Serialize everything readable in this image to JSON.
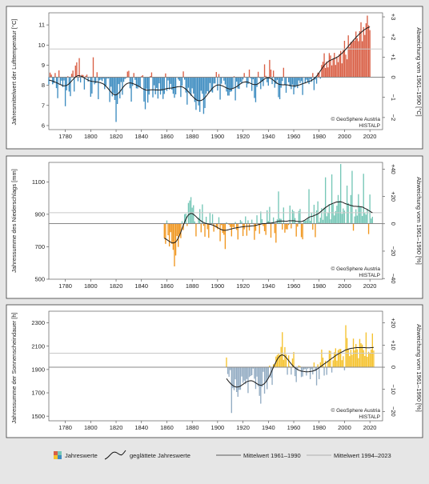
{
  "chart_data": [
    {
      "type": "bar",
      "panel": "temperature",
      "ylabel_left": "Jahresmittelwert der Lufttemperatur [°C]",
      "ylabel_right": "Abweichung vom 1961–1990 [°C]",
      "ylim_left": [
        5.8,
        11.6
      ],
      "yticks_left": [
        6,
        7,
        8,
        9,
        10,
        11
      ],
      "ylim_right": [
        -2.6,
        3.2
      ],
      "yticks_right": [
        "−2",
        "−1",
        "0",
        "+1",
        "+2",
        "+3"
      ],
      "yticks_right_values": [
        -2,
        -1,
        0,
        1,
        2,
        3
      ],
      "xlim": [
        1767,
        2030
      ],
      "xticks": [
        1780,
        1800,
        1820,
        1840,
        1860,
        1880,
        1900,
        1920,
        1940,
        1960,
        1980,
        2000,
        2020
      ],
      "baseline": 8.4,
      "mean_1994_2023": 9.8,
      "positive_color": "#d95f45",
      "negative_color": "#3d8cc0",
      "start_year": 1767,
      "annual_values": [
        8.04,
        8.63,
        8.53,
        8.05,
        8.11,
        8.61,
        7.86,
        7.36,
        8.74,
        8.06,
        8.23,
        7.91,
        8.24,
        6.96,
        7.75,
        8.45,
        7.69,
        7.46,
        8.57,
        8.73,
        7.69,
        8.98,
        9.14,
        8.2,
        9.35,
        8.14,
        8.52,
        8.51,
        7.79,
        8.47,
        8.53,
        8.18,
        8.38,
        7.43,
        7.59,
        9.39,
        8.05,
        8.11,
        8.65,
        7.31,
        8.25,
        8.28,
        8.21,
        8.33,
        7.81,
        7.98,
        8.33,
        8.34,
        7.17,
        7.93,
        7.45,
        7.61,
        7.27,
        6.18,
        7.07,
        8.06,
        7.35,
        8.16,
        7.53,
        8.17,
        8.31,
        8.36,
        8.68,
        8.72,
        7.85,
        7.19,
        7.97,
        8.61,
        8.27,
        7.85,
        7.84,
        7.96,
        7.89,
        8.45,
        8.5,
        7.19,
        6.81,
        7.83,
        7.14,
        7.54,
        8.46,
        8.64,
        7.4,
        8.0,
        7.55,
        7.87,
        7.34,
        8.1,
        7.54,
        7.73,
        7.32,
        7.57,
        8.59,
        7.72,
        8.24,
        7.79,
        8.07,
        7.78,
        7.58,
        7.38,
        7.55,
        8.42,
        8.29,
        8.22,
        7.42,
        7.98,
        8.69,
        8.28,
        7.64,
        7.04,
        7.88,
        7.63,
        7.48,
        7.85,
        7.59,
        7.17,
        6.78,
        7.22,
        7.0,
        6.68,
        7.73,
        7.58,
        6.58,
        6.87,
        7.58,
        7.71,
        7.6,
        8.11,
        7.69,
        7.64,
        8.09,
        8.09,
        8.66,
        7.74,
        8.56,
        7.29,
        8.08,
        8.37,
        8.23,
        8.04,
        7.69,
        7.49,
        7.49,
        7.68,
        7.7,
        7.83,
        8.45,
        7.25,
        8.18,
        7.84,
        7.82,
        8.16,
        8.09,
        8.29,
        8.61,
        8.38,
        7.89,
        8.06,
        8.78,
        8.34,
        7.72,
        8.3,
        7.37,
        7.16,
        7.92,
        8.67,
        8.36,
        7.81,
        8.18,
        7.96,
        9.04,
        8.47,
        8.15,
        7.98,
        9.26,
        8.78,
        8.06,
        8.73,
        7.88,
        8.07,
        8.27,
        7.41,
        7.31,
        7.88,
        8.21,
        8.87,
        8.04,
        7.63,
        8.37,
        8.15,
        7.94,
        7.81,
        8.04,
        7.55,
        7.89,
        8.0,
        7.86,
        8.24,
        8.11,
        8.21,
        7.52,
        8.38,
        8.1,
        8.28,
        8.15,
        8.06,
        8.31,
        8.17,
        8.61,
        7.76,
        8.29,
        8.08,
        8.63,
        8.62,
        8.33,
        9.01,
        9.17,
        9.59,
        8.86,
        9.18,
        8.89,
        9.6,
        9.48,
        8.99,
        9.32,
        9.61,
        9.01,
        9.42,
        9.15,
        9.55,
        9.71,
        9.09,
        9.75,
        10.21,
        9.52,
        9.29,
        10.48,
        9.91,
        10.15,
        10.14,
        10.27,
        10.22,
        10.67,
        10.34,
        10.19,
        10.69,
        11.13,
        10.19,
        10.89,
        10.5,
        11.08,
        11.46,
        10.98,
        10.74
      ]
    },
    {
      "type": "bar",
      "panel": "precipitation",
      "ylabel_left": "Jahressumme des Niederschlags [mm]",
      "ylabel_right": "Abweichung vom 1961–1990 [%]",
      "ylim_left": [
        500,
        1220
      ],
      "yticks_left": [
        500,
        700,
        900,
        1100
      ],
      "ylim_right": [
        -40.5,
        44.9
      ],
      "yticks_right": [
        "−40",
        "−20",
        "0",
        "+20",
        "+40"
      ],
      "yticks_right_values": [
        -40,
        -20,
        0,
        20,
        40
      ],
      "xlim": [
        1767,
        2030
      ],
      "xticks": [
        1780,
        1800,
        1820,
        1840,
        1860,
        1880,
        1900,
        1920,
        1940,
        1960,
        1980,
        2000,
        2020
      ],
      "baseline": 843,
      "mean_1994_2023": 910,
      "positive_color": "#76c7b7",
      "negative_color": "#f0961e",
      "start_year": 1858,
      "annual_values": [
        753,
        718,
        862,
        771,
        702,
        790,
        718,
        681,
        579,
        646,
        766,
        699,
        776,
        753,
        857,
        803,
        901,
        904,
        828,
        970,
        985,
        1006,
        941,
        956,
        856,
        764,
        845,
        879,
        932,
        789,
        961,
        829,
        762,
        885,
        808,
        755,
        909,
        847,
        901,
        793,
        845,
        818,
        808,
        882,
        734,
        834,
        785,
        774,
        686,
        851,
        841,
        835,
        822,
        764,
        822,
        816,
        853,
        804,
        745,
        846,
        865,
        856,
        766,
        807,
        887,
        768,
        863,
        800,
        842,
        867,
        846,
        743,
        798,
        894,
        837,
        780,
        917,
        870,
        828,
        796,
        773,
        925,
        859,
        946,
        756,
        840,
        881,
        784,
        725,
        869,
        1041,
        874,
        872,
        806,
        942,
        787,
        808,
        807,
        834,
        954,
        813,
        929,
        919,
        877,
        763,
        824,
        921,
        933,
        759,
        746,
        864,
        860,
        863,
        872,
        1055,
        860,
        911,
        805,
        959,
        759,
        924,
        980,
        852,
        879,
        938,
        866,
        941,
        1128,
        888,
        909,
        963,
        869,
        1146,
        963,
        893,
        920,
        953,
        1019,
        983,
        1210,
        903,
        936,
        923,
        847,
        1077,
        969,
        847,
        1019,
        1168,
        799,
        887,
        931,
        892,
        1024,
        950,
        946,
        890,
        1150,
        908,
        898,
        933,
        778,
        1022,
        874,
        885
      ]
    },
    {
      "type": "bar",
      "panel": "sunshine",
      "ylabel_left": "Jahressumme der Sonnenscheindauer [h]",
      "ylabel_right": "Abweichung vom 1961–1990 [%]",
      "ylim_left": [
        1460,
        2400
      ],
      "yticks_left": [
        1500,
        1700,
        1900,
        2100,
        2300
      ],
      "ylim_right": [
        -24.2,
        25.3
      ],
      "yticks_right": [
        "−20",
        "−10",
        "0",
        "+10",
        "+20"
      ],
      "yticks_right_values": [
        -20,
        -10,
        0,
        10,
        20
      ],
      "xlim": [
        1767,
        2030
      ],
      "xticks": [
        1780,
        1800,
        1820,
        1840,
        1860,
        1880,
        1900,
        1920,
        1940,
        1960,
        1980,
        2000,
        2020
      ],
      "baseline": 1920,
      "mean_1994_2023": 2040,
      "positive_color": "#f5c22d",
      "negative_color": "#93acc3",
      "start_year": 1907,
      "annual_values": [
        2003,
        1861,
        1837,
        1895,
        1527,
        1740,
        1722,
        1816,
        1707,
        1666,
        1725,
        1726,
        1840,
        1786,
        1805,
        1774,
        1818,
        1698,
        1835,
        1844,
        1851,
        1908,
        1821,
        1733,
        1839,
        1756,
        1674,
        1607,
        1750,
        1880,
        1693,
        1793,
        1731,
        1827,
        1934,
        1830,
        1768,
        1945,
        1938,
        2011,
        2025,
        2034,
        2025,
        2094,
        2220,
        1983,
        2092,
        2029,
        1855,
        2021,
        1928,
        1856,
        1994,
        2050,
        1843,
        1792,
        1895,
        1935,
        1929,
        1835,
        1840,
        1898,
        1905,
        1848,
        1907,
        1911,
        1817,
        1902,
        1858,
        1960,
        1886,
        1764,
        1944,
        1817,
        1962,
        2071,
        2002,
        1848,
        1975,
        1854,
        1970,
        2062,
        2059,
        1874,
        1979,
        2049,
        2082,
        1976,
        2066,
        2076,
        2076,
        1980,
        2014,
        1893,
        2280,
        2170,
        2070,
        2015,
        2070,
        2026,
        2165,
        2064,
        2119,
        2073,
        1997,
        2162,
        2125,
        2114,
        2066,
        2016,
        2218,
        2009,
        2052,
        2044,
        2070,
        2209,
        2063
      ]
    }
  ],
  "watermark": {
    "line1": "© GeoSphere Austria",
    "line2": "HISTALP"
  },
  "legend": {
    "annual": "Jahreswerte",
    "smoothed": "geglättete Jahreswerte",
    "mean_6190": "Mittelwert 1961–1990",
    "mean_9423": "Mittelwert 1994–2023",
    "colors": [
      "#d95f45",
      "#3d8cc0",
      "#76c7b7",
      "#f0961e",
      "#f5c22d",
      "#93acc3"
    ]
  }
}
